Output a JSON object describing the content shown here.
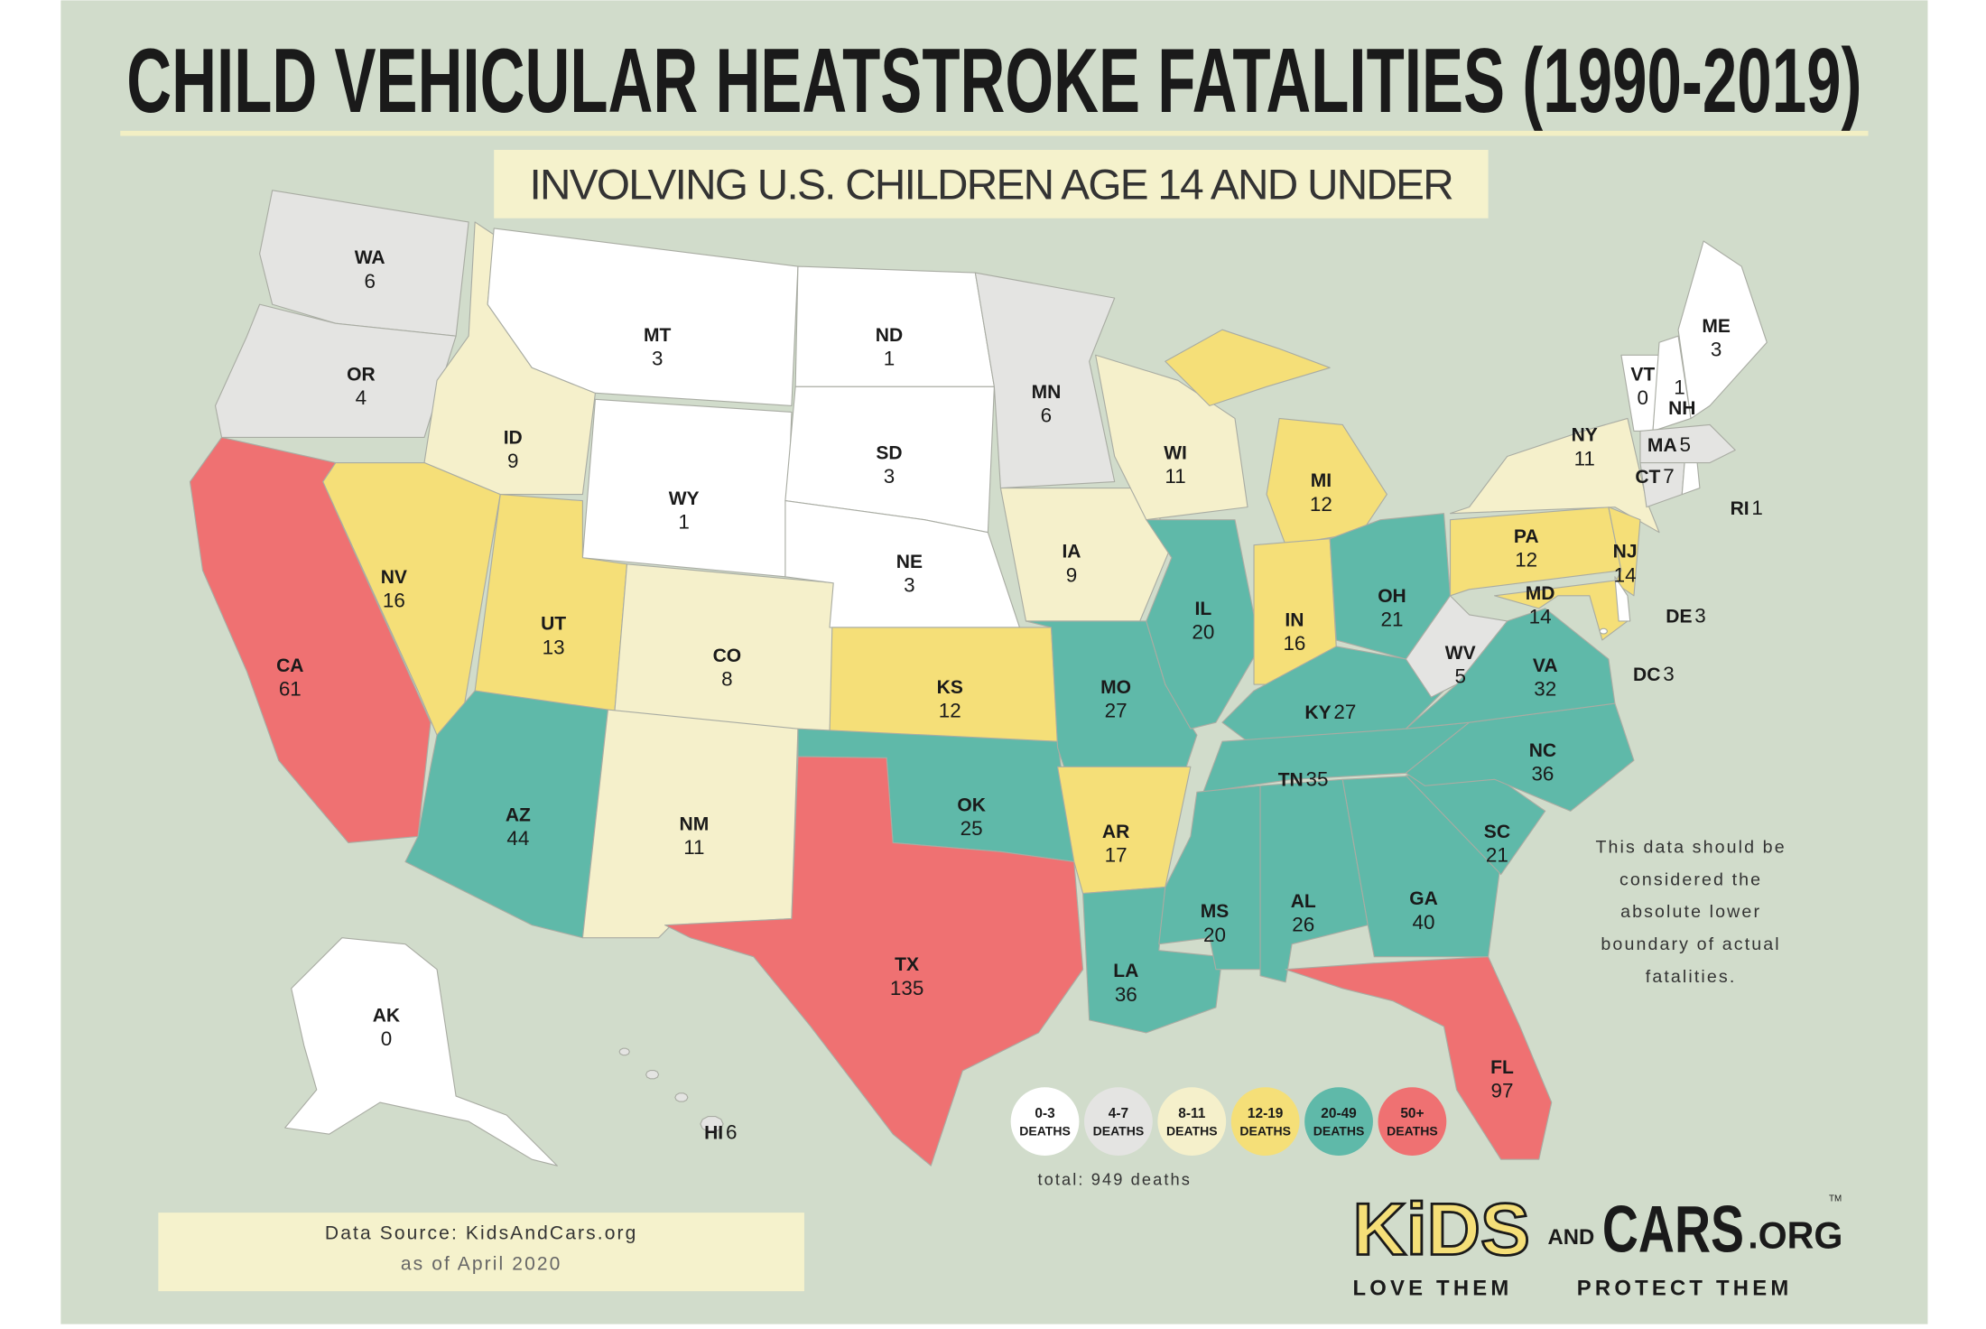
{
  "title": "CHILD VEHICULAR HEATSTROKE FATALITIES (1990-2019)",
  "subtitle": "INVOLVING U.S. CHILDREN AGE 14 AND UNDER",
  "states": [
    {
      "abbr": "WA",
      "deaths": 6
    },
    {
      "abbr": "OR",
      "deaths": 4
    },
    {
      "abbr": "CA",
      "deaths": 61
    },
    {
      "abbr": "ID",
      "deaths": 9
    },
    {
      "abbr": "NV",
      "deaths": 16
    },
    {
      "abbr": "MT",
      "deaths": 3
    },
    {
      "abbr": "WY",
      "deaths": 1
    },
    {
      "abbr": "UT",
      "deaths": 13
    },
    {
      "abbr": "CO",
      "deaths": 8
    },
    {
      "abbr": "AZ",
      "deaths": 44
    },
    {
      "abbr": "NM",
      "deaths": 11
    },
    {
      "abbr": "ND",
      "deaths": 1
    },
    {
      "abbr": "SD",
      "deaths": 3
    },
    {
      "abbr": "NE",
      "deaths": 3
    },
    {
      "abbr": "KS",
      "deaths": 12
    },
    {
      "abbr": "OK",
      "deaths": 25
    },
    {
      "abbr": "TX",
      "deaths": 135
    },
    {
      "abbr": "MN",
      "deaths": 6
    },
    {
      "abbr": "IA",
      "deaths": 9
    },
    {
      "abbr": "MO",
      "deaths": 27
    },
    {
      "abbr": "AR",
      "deaths": 17
    },
    {
      "abbr": "LA",
      "deaths": 36
    },
    {
      "abbr": "WI",
      "deaths": 11
    },
    {
      "abbr": "IL",
      "deaths": 20
    },
    {
      "abbr": "MI",
      "deaths": 12
    },
    {
      "abbr": "IN",
      "deaths": 16
    },
    {
      "abbr": "OH",
      "deaths": 21
    },
    {
      "abbr": "KY",
      "deaths": 27
    },
    {
      "abbr": "TN",
      "deaths": 35
    },
    {
      "abbr": "MS",
      "deaths": 20
    },
    {
      "abbr": "AL",
      "deaths": 26
    },
    {
      "abbr": "GA",
      "deaths": 40
    },
    {
      "abbr": "FL",
      "deaths": 97
    },
    {
      "abbr": "SC",
      "deaths": 21
    },
    {
      "abbr": "NC",
      "deaths": 36
    },
    {
      "abbr": "VA",
      "deaths": 32
    },
    {
      "abbr": "WV",
      "deaths": 5
    },
    {
      "abbr": "PA",
      "deaths": 12
    },
    {
      "abbr": "NY",
      "deaths": 11
    },
    {
      "abbr": "NJ",
      "deaths": 14
    },
    {
      "abbr": "MD",
      "deaths": 14
    },
    {
      "abbr": "DE",
      "deaths": 3
    },
    {
      "abbr": "DC",
      "deaths": 3
    },
    {
      "abbr": "VT",
      "deaths": 0
    },
    {
      "abbr": "NH",
      "deaths": 1
    },
    {
      "abbr": "ME",
      "deaths": 3
    },
    {
      "abbr": "MA",
      "deaths": 5
    },
    {
      "abbr": "CT",
      "deaths": 7
    },
    {
      "abbr": "RI",
      "deaths": 1
    },
    {
      "abbr": "AK",
      "deaths": 0
    },
    {
      "abbr": "HI",
      "deaths": 6
    }
  ],
  "legend": [
    {
      "label": "0-3",
      "unit": "DEATHS",
      "color": "#ffffff"
    },
    {
      "label": "4-7",
      "unit": "DEATHS",
      "color": "#e4e4e2"
    },
    {
      "label": "8-11",
      "unit": "DEATHS",
      "color": "#f5f0cb"
    },
    {
      "label": "12-19",
      "unit": "DEATHS",
      "color": "#f5df78"
    },
    {
      "label": "20-49",
      "unit": "DEATHS",
      "color": "#5fb9a9"
    },
    {
      "label": "50+",
      "unit": "DEATHS",
      "color": "#ef7172"
    }
  ],
  "total": "total: 949 deaths",
  "note": [
    "This data should be",
    "considered the",
    "absolute lower",
    "boundary of actual",
    "fatalities."
  ],
  "source": {
    "line1": "Data Source: KidsAndCars.org",
    "line2": "as of April 2020"
  },
  "logo": {
    "kids": "KiDS",
    "and": "AND",
    "cars": "CARS",
    "org": ".ORG",
    "tm": "TM",
    "tagline_left": "LOVE THEM",
    "tagline_right": "PROTECT THEM"
  }
}
